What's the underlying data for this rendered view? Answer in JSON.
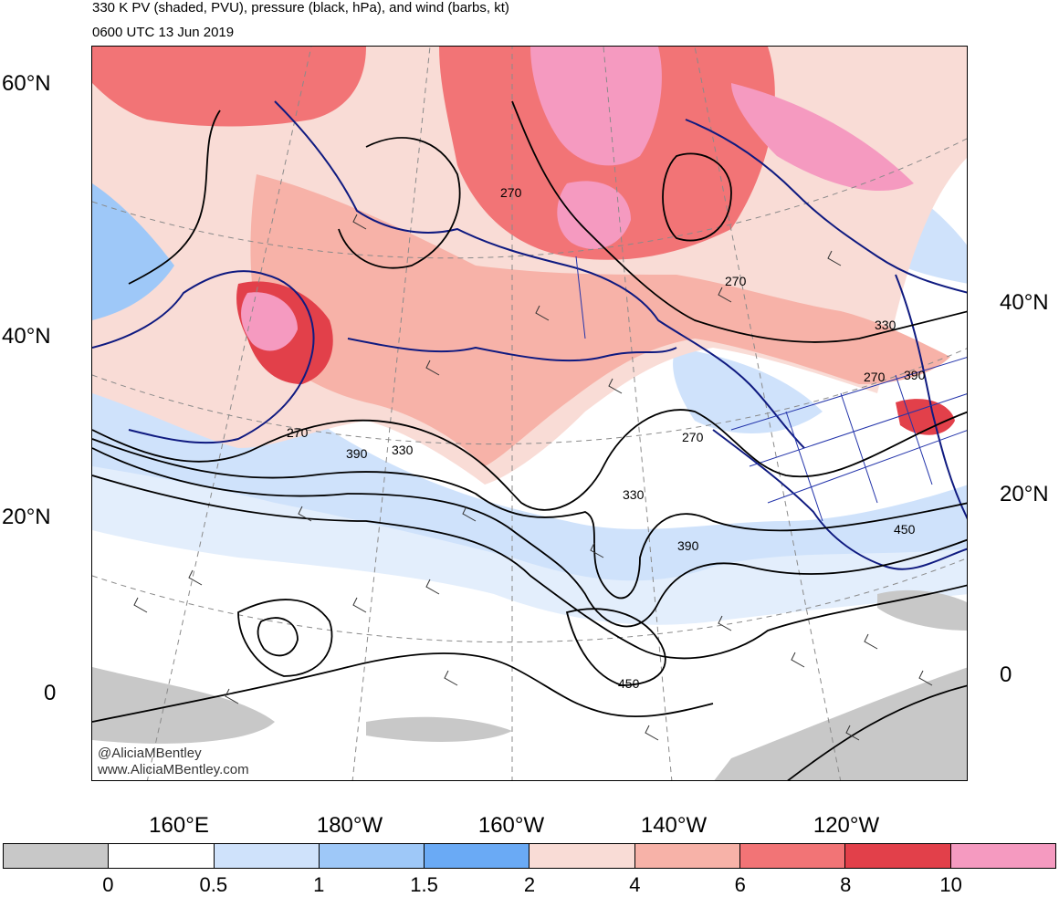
{
  "title": {
    "line1": "330 K PV (shaded, PVU), pressure (black, hPa), and wind (barbs, kt)",
    "line2": "0600 UTC 13 Jun 2019"
  },
  "axes": {
    "left_lat": [
      "60°N",
      "40°N",
      "20°N",
      "0"
    ],
    "right_lat": [
      "40°N",
      "20°N",
      "0"
    ],
    "lon": [
      "160°E",
      "180°W",
      "160°W",
      "140°W",
      "120°W"
    ]
  },
  "contour_labels": [
    "270",
    "270",
    "270",
    "270",
    "390",
    "330",
    "330",
    "330",
    "390",
    "450",
    "450",
    "390",
    "270"
  ],
  "credit": {
    "line1": "@AliciaMBentley",
    "line2": "www.AliciaMBentley.com"
  },
  "colorbar": {
    "colors": [
      "#c8c8c8",
      "#ffffff",
      "#cfe2fb",
      "#9ec8f8",
      "#6aaaf5",
      "#f9dcd6",
      "#f7b2a8",
      "#f27476",
      "#e2404a",
      "#f59ac0"
    ],
    "labels": [
      "0",
      "0.5",
      "1",
      "1.5",
      "2",
      "4",
      "6",
      "8",
      "10"
    ]
  }
}
